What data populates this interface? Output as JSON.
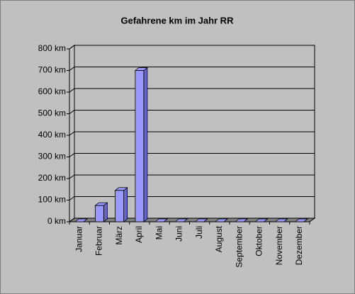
{
  "chart_data": {
    "type": "bar",
    "title": "Gefahrene km im Jahr RR",
    "categories": [
      "Januar",
      "Februar",
      "März",
      "April",
      "Mai",
      "Juni",
      "Juli",
      "August",
      "September",
      "Oktober",
      "November",
      "Dezember"
    ],
    "values": [
      0,
      75,
      145,
      700,
      0,
      0,
      0,
      0,
      0,
      0,
      0,
      0
    ],
    "color": "#9999ff",
    "ylim": [
      0,
      800
    ],
    "yticks": [
      {
        "value": 0,
        "label": "0 km"
      },
      {
        "value": 100,
        "label": "100 km"
      },
      {
        "value": 200,
        "label": "200 km"
      },
      {
        "value": 300,
        "label": "300 km"
      },
      {
        "value": 400,
        "label": "400 km"
      },
      {
        "value": 500,
        "label": "500 km"
      },
      {
        "value": 600,
        "label": "600 km"
      },
      {
        "value": 700,
        "label": "700 km"
      },
      {
        "value": 800,
        "label": "800 km"
      }
    ],
    "grid": true
  }
}
